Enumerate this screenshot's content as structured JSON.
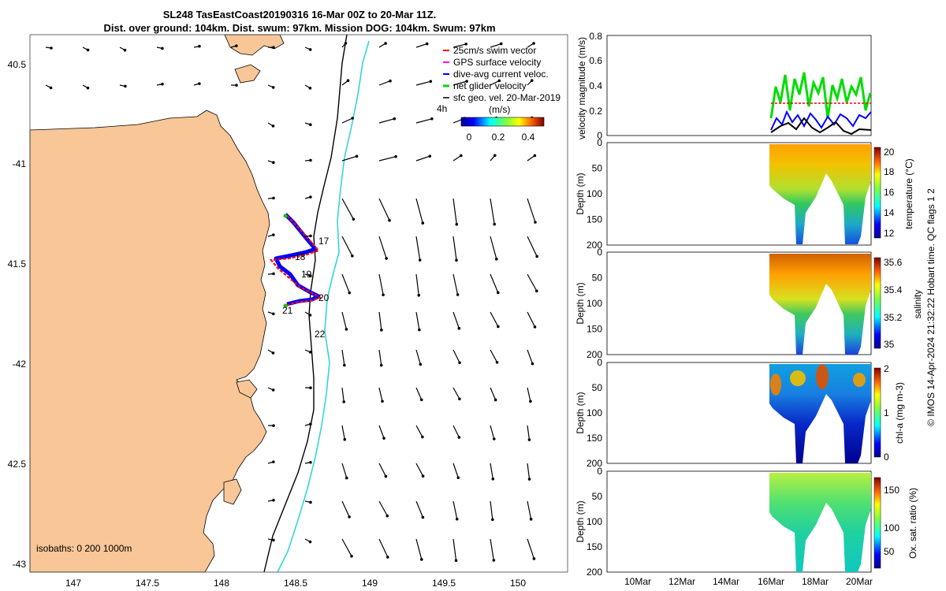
{
  "header": {
    "title_line1": "SL248 TasEastCoast20190316 16-Mar 00Z to 20-Mar 11Z.",
    "title_line2": "Dist. over ground: 104km. Dist. swum: 97km. Mission DOG: 104km. Swum: 97km"
  },
  "map": {
    "lat_ticks": [
      "40.5",
      "-41",
      "41.5",
      "-42",
      "42.5",
      "-43"
    ],
    "lon_ticks": [
      "147",
      "147.5",
      "148",
      "148.5",
      "149",
      "149.5",
      "150"
    ],
    "legend": [
      {
        "label": "25cm/s swim vector",
        "color": "#ff0000"
      },
      {
        "label": "GPS surface velocity",
        "color": "#ff00ff"
      },
      {
        "label": "dive-avg current veloc.",
        "color": "#0000ff"
      },
      {
        "label": "net glider velocity",
        "color": "#00dd00"
      },
      {
        "label": "sfc geo. vel. 20-Mar-2019",
        "color": "#000000"
      }
    ],
    "interval_label": "4h",
    "colorbar_title": "(m/s)",
    "colorbar_ticks": [
      "0",
      "0.2",
      "0.4"
    ],
    "day_labels": [
      "17",
      "18",
      "19",
      "20",
      "21",
      "22"
    ],
    "isobaths_label": "isobaths: 0   200  1000m",
    "land_color": "#f8c697",
    "isobath_200_color": "#000000",
    "isobath_1000_color": "#33d6d6"
  },
  "panels": {
    "velocity": {
      "ylabel": "velocity magnitude (m/s)",
      "yticks": [
        "0.8",
        "0.6",
        "0.4",
        "0.2",
        "0"
      ]
    },
    "temperature": {
      "ylabel": "Depth (m)",
      "yticks": [
        "0",
        "50",
        "100",
        "150",
        "200"
      ],
      "cbar_label": "temperature (°C)",
      "cbar_ticks": [
        "20",
        "18",
        "16",
        "14",
        "12"
      ]
    },
    "salinity": {
      "ylabel": "Depth (m)",
      "yticks": [
        "0",
        "50",
        "100",
        "150",
        "200"
      ],
      "cbar_label": "salinity",
      "cbar_ticks": [
        "35.6",
        "35.4",
        "35.2",
        "35"
      ]
    },
    "chla": {
      "ylabel": "Depth (m)",
      "yticks": [
        "0",
        "50",
        "100",
        "150",
        "200"
      ],
      "cbar_label": "chl-a (mg m-3)",
      "cbar_ticks": [
        "2",
        "1",
        "0"
      ]
    },
    "oxygen": {
      "ylabel": "Depth (m)",
      "yticks": [
        "0",
        "50",
        "100",
        "150",
        "200"
      ],
      "cbar_label": "Ox. sat. ratio (%)",
      "cbar_ticks": [
        "150",
        "100",
        "50"
      ]
    },
    "date_ticks": [
      "10Mar",
      "12Mar",
      "14Mar",
      "16Mar",
      "18Mar",
      "20Mar"
    ]
  },
  "footer": {
    "credit": "© IMOS 14-Apr-2024 21:32:22 Hobart time. QC flags 1  2"
  }
}
